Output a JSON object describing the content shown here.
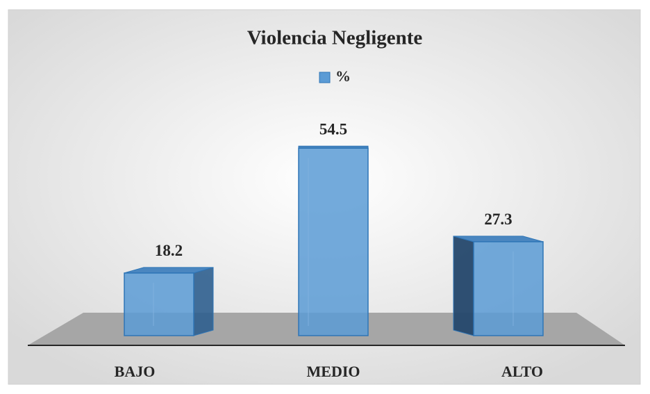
{
  "chart_data": {
    "type": "bar3d",
    "title": "Violencia Negligente",
    "categories": [
      "BAJO",
      "MEDIO",
      "ALTO"
    ],
    "series": [
      {
        "name": "%",
        "color": "#5b9bd5",
        "values": [
          18.2,
          54.5,
          27.3
        ]
      }
    ]
  }
}
